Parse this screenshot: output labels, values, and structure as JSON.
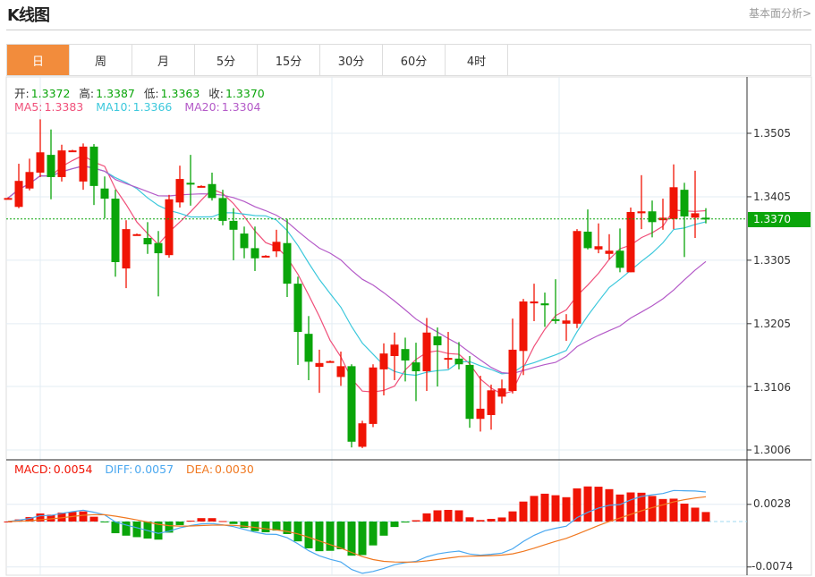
{
  "header": {
    "title": "K线图",
    "more_link": "基本面分析>"
  },
  "tabs": [
    {
      "label": "日",
      "active": true
    },
    {
      "label": "周"
    },
    {
      "label": "月"
    },
    {
      "label": "5分"
    },
    {
      "label": "15分"
    },
    {
      "label": "30分"
    },
    {
      "label": "60分"
    },
    {
      "label": "4时"
    }
  ],
  "ohlc_legend": {
    "open_label": "开:",
    "open": "1.3372",
    "high_label": "高:",
    "high": "1.3387",
    "low_label": "低:",
    "low": "1.3363",
    "close_label": "收:",
    "close": "1.3370"
  },
  "ma_legend": {
    "ma5_label": "MA5:",
    "ma5": "1.3383",
    "ma10_label": "MA10:",
    "ma10": "1.3366",
    "ma20_label": "MA20:",
    "ma20": "1.3304"
  },
  "macd_legend": {
    "macd_label": "MACD:",
    "macd": "0.0054",
    "diff_label": "DIFF:",
    "diff": "0.0057",
    "dea_label": "DEA:",
    "dea": "0.0030"
  },
  "current_price": "1.3370",
  "colors": {
    "up": "#f01405",
    "down": "#0aa50a",
    "ma5": "#f0507a",
    "ma10": "#3cc8dc",
    "ma20": "#b45ac8",
    "diff": "#4aa8f0",
    "dea": "#f07820",
    "active_tab": "#f28c3c"
  },
  "chart_data": [
    {
      "type": "candlestick",
      "y_ticks": [
        "1.3505",
        "1.3405",
        "1.3305",
        "1.3205",
        "1.3106",
        "1.3006"
      ],
      "ylim": [
        1.2997,
        1.3585
      ],
      "grid": true,
      "candles": [
        [
          1.3402,
          1.3404,
          1.3401,
          1.3403
        ],
        [
          1.3389,
          1.3457,
          1.3387,
          1.343
        ],
        [
          1.3418,
          1.3465,
          1.3415,
          1.3444
        ],
        [
          1.3443,
          1.3527,
          1.3436,
          1.3475
        ],
        [
          1.3471,
          1.3511,
          1.3401,
          1.3436
        ],
        [
          1.3436,
          1.3487,
          1.3429,
          1.3478
        ],
        [
          1.3477,
          1.3479,
          1.3476,
          1.3478
        ],
        [
          1.3429,
          1.3489,
          1.3416,
          1.3484
        ],
        [
          1.3484,
          1.3488,
          1.3392,
          1.3422
        ],
        [
          1.3418,
          1.3437,
          1.3371,
          1.3402
        ],
        [
          1.3402,
          1.3416,
          1.3279,
          1.3302
        ],
        [
          1.3292,
          1.3368,
          1.3261,
          1.3354
        ],
        [
          1.3345,
          1.3347,
          1.3344,
          1.3346
        ],
        [
          1.334,
          1.3365,
          1.3315,
          1.333
        ],
        [
          1.3332,
          1.3351,
          1.3248,
          1.3316
        ],
        [
          1.3313,
          1.3408,
          1.3309,
          1.3401
        ],
        [
          1.3396,
          1.3454,
          1.3388,
          1.3433
        ],
        [
          1.3427,
          1.3471,
          1.3391,
          1.3426
        ],
        [
          1.3421,
          1.3423,
          1.342,
          1.3422
        ],
        [
          1.3425,
          1.3443,
          1.3399,
          1.3403
        ],
        [
          1.3403,
          1.3416,
          1.336,
          1.3367
        ],
        [
          1.3367,
          1.3387,
          1.3305,
          1.3353
        ],
        [
          1.3347,
          1.3358,
          1.3308,
          1.3324
        ],
        [
          1.3324,
          1.3358,
          1.3288,
          1.3308
        ],
        [
          1.3311,
          1.3313,
          1.331,
          1.3312
        ],
        [
          1.3319,
          1.3353,
          1.331,
          1.3334
        ],
        [
          1.3332,
          1.337,
          1.3247,
          1.3268
        ],
        [
          1.3268,
          1.3279,
          1.314,
          1.3192
        ],
        [
          1.3189,
          1.3217,
          1.3116,
          1.3145
        ],
        [
          1.3137,
          1.3164,
          1.3096,
          1.3143
        ],
        [
          1.3145,
          1.3147,
          1.3144,
          1.3146
        ],
        [
          1.3121,
          1.3161,
          1.3107,
          1.3138
        ],
        [
          1.3138,
          1.3141,
          1.301,
          1.3019
        ],
        [
          1.3011,
          1.3052,
          1.3009,
          1.3048
        ],
        [
          1.3047,
          1.3141,
          1.3042,
          1.3136
        ],
        [
          1.3133,
          1.3174,
          1.3092,
          1.3158
        ],
        [
          1.3154,
          1.3191,
          1.3116,
          1.3172
        ],
        [
          1.3165,
          1.3183,
          1.3114,
          1.3147
        ],
        [
          1.3144,
          1.3175,
          1.3083,
          1.313
        ],
        [
          1.313,
          1.3214,
          1.3099,
          1.3191
        ],
        [
          1.3185,
          1.3199,
          1.3106,
          1.3171
        ],
        [
          1.315,
          1.3192,
          1.3134,
          1.3151
        ],
        [
          1.315,
          1.3176,
          1.3133,
          1.3141
        ],
        [
          1.314,
          1.3154,
          1.3041,
          1.3055
        ],
        [
          1.3055,
          1.3123,
          1.3035,
          1.3071
        ],
        [
          1.3061,
          1.3109,
          1.3038,
          1.31
        ],
        [
          1.309,
          1.3117,
          1.3079,
          1.3103
        ],
        [
          1.3099,
          1.3213,
          1.3095,
          1.3164
        ],
        [
          1.3162,
          1.3244,
          1.3124,
          1.324
        ],
        [
          1.3237,
          1.3268,
          1.3209,
          1.324
        ],
        [
          1.3237,
          1.3254,
          1.32,
          1.3234
        ],
        [
          1.3212,
          1.3275,
          1.3205,
          1.321
        ],
        [
          1.3205,
          1.322,
          1.3178,
          1.321
        ],
        [
          1.3205,
          1.3354,
          1.3198,
          1.3351
        ],
        [
          1.335,
          1.3385,
          1.3322,
          1.3324
        ],
        [
          1.3322,
          1.3363,
          1.3316,
          1.3327
        ],
        [
          1.3315,
          1.3346,
          1.3306,
          1.332
        ],
        [
          1.332,
          1.3355,
          1.3286,
          1.3293
        ],
        [
          1.3286,
          1.3388,
          1.3286,
          1.3381
        ],
        [
          1.3379,
          1.3439,
          1.3354,
          1.3382
        ],
        [
          1.3382,
          1.3399,
          1.3341,
          1.3365
        ],
        [
          1.3368,
          1.3402,
          1.3353,
          1.3372
        ],
        [
          1.337,
          1.3456,
          1.3354,
          1.342
        ],
        [
          1.3416,
          1.3427,
          1.331,
          1.3374
        ],
        [
          1.3372,
          1.3446,
          1.334,
          1.3379
        ],
        [
          1.3372,
          1.3387,
          1.3363,
          1.337
        ]
      ],
      "series": [
        {
          "name": "MA5",
          "period": 5
        },
        {
          "name": "MA10",
          "period": 10
        },
        {
          "name": "MA20",
          "period": 20
        }
      ]
    },
    {
      "type": "bar",
      "y_ticks": [
        "0.0028",
        "-0.0074"
      ],
      "ylim": [
        -0.008,
        0.0046
      ],
      "series": [
        {
          "name": "MACD"
        },
        {
          "name": "DIFF"
        },
        {
          "name": "DEA"
        }
      ]
    }
  ]
}
